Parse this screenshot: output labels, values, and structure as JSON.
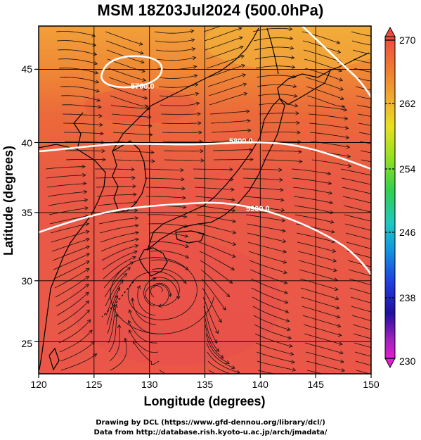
{
  "title": "MSM 18Z03Jul2024 (500.0hPa)",
  "map": {
    "xlabel": "Longitude (degrees)",
    "ylabel": "Latitude  (degrees)",
    "lon_range": [
      120,
      150
    ],
    "lat_range": [
      22.6,
      47.8
    ],
    "x_ticks": [
      "120",
      "125",
      "130",
      "135",
      "140",
      "145",
      "150"
    ],
    "y_ticks": [
      "25",
      "30",
      "35",
      "40",
      "45"
    ],
    "contour_labels": [
      "5700.0",
      "5800.0",
      "5900.0"
    ],
    "field": "temperature (shaded) with wind streamlines and geopotential height contours"
  },
  "colorbar": {
    "range": [
      230,
      270
    ],
    "tick_labels": [
      "270",
      "262",
      "254",
      "246",
      "238",
      "230"
    ],
    "colors": [
      "#e020d0",
      "#3030e0",
      "#10a0e0",
      "#20d0a0",
      "#40e020",
      "#e0e020",
      "#f0a020",
      "#f04030"
    ]
  },
  "credits": {
    "line1": "Drawing by DCL (https://www.gfd-dennou.org/library/dcl/)",
    "line2": "Data from http://database.rish.kyoto-u.ac.jp/arch/jmadata/"
  }
}
